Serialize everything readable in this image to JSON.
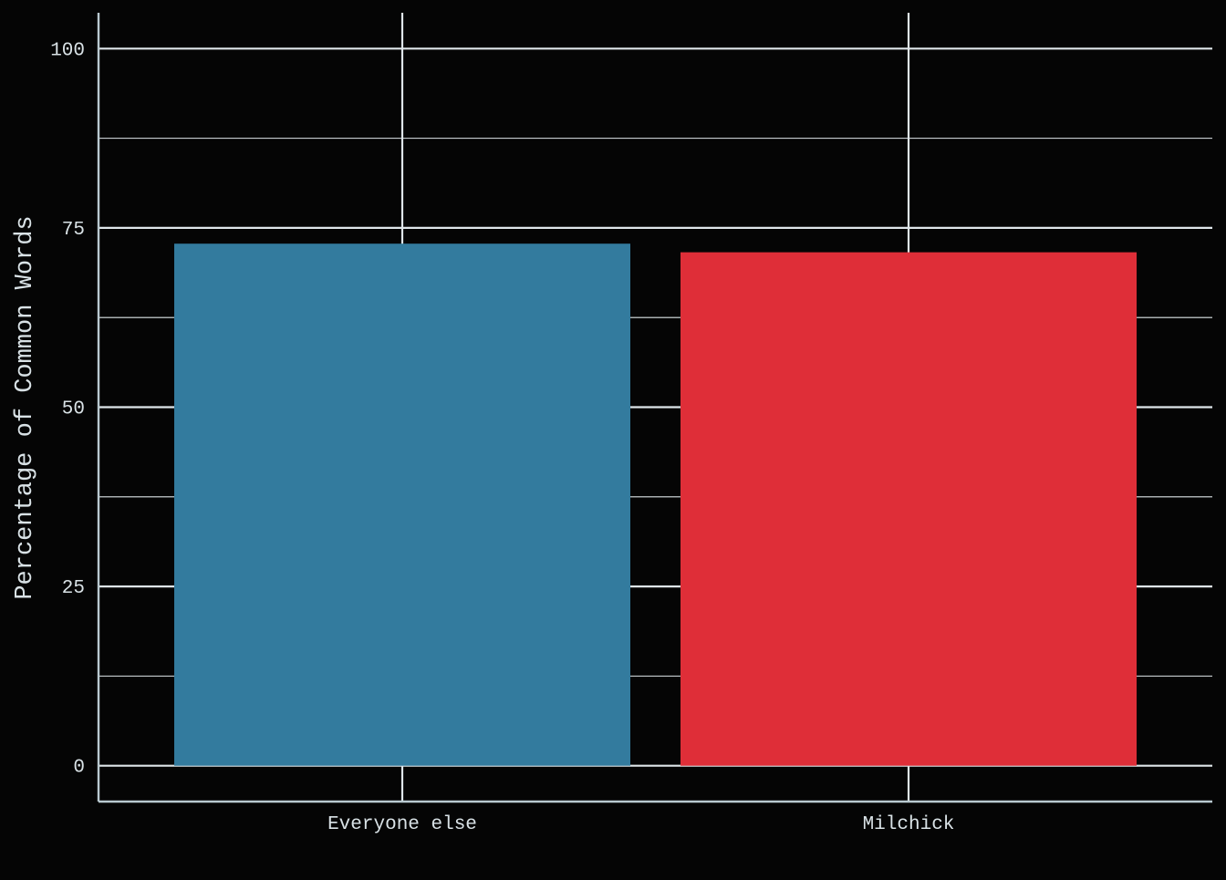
{
  "colors": {
    "background": "#050505",
    "grid": "#dfe6ea",
    "text": "#d9e2e6",
    "axis": "#b9c9d0"
  },
  "chart_data": {
    "type": "bar",
    "title": "",
    "xlabel": "",
    "ylabel": "Percentage of Common Words",
    "categories": [
      "Everyone else",
      "Milchick"
    ],
    "values": [
      72.8,
      71.6
    ],
    "bar_colors": [
      "#337b9e",
      "#df2e38"
    ],
    "ylim": [
      -5,
      105
    ],
    "yticks": [
      0,
      25,
      50,
      75,
      100
    ],
    "y_tick_labels": [
      "0",
      "25",
      "50",
      "75",
      "100"
    ],
    "grid": true,
    "legend": "none"
  }
}
